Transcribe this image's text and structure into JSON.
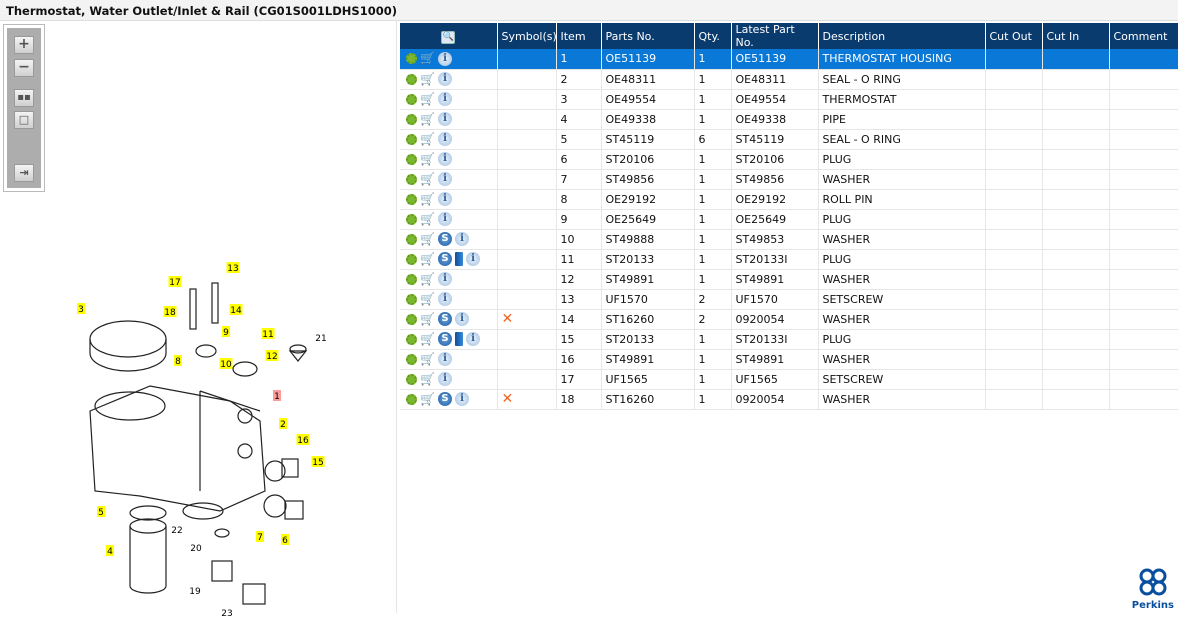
{
  "title": "Thermostat, Water Outlet/Inlet & Rail (CG01S001LDHS1000)",
  "zoom_toolbar": [
    "zoom-in",
    "zoom-out",
    "fit-all",
    "actual-size",
    "toggle-panel"
  ],
  "columns": [
    "",
    "Symbol(s)",
    "Item",
    "Parts No.",
    "Qty.",
    "Latest Part No.",
    "Description",
    "Cut Out",
    "Cut In",
    "Comment"
  ],
  "rows": [
    {
      "icons": [
        "gear",
        "cart",
        "info"
      ],
      "symbol": "",
      "item": "1",
      "part": "OE51139",
      "qty": "1",
      "latest": "OE51139",
      "desc": "THERMOSTAT HOUSING",
      "selected": true
    },
    {
      "icons": [
        "gear",
        "cart",
        "info"
      ],
      "symbol": "",
      "item": "2",
      "part": "OE48311",
      "qty": "1",
      "latest": "OE48311",
      "desc": "SEAL - O RING"
    },
    {
      "icons": [
        "gear",
        "cart",
        "info"
      ],
      "symbol": "",
      "item": "3",
      "part": "OE49554",
      "qty": "1",
      "latest": "OE49554",
      "desc": "THERMOSTAT"
    },
    {
      "icons": [
        "gear",
        "cart",
        "info"
      ],
      "symbol": "",
      "item": "4",
      "part": "OE49338",
      "qty": "1",
      "latest": "OE49338",
      "desc": "PIPE"
    },
    {
      "icons": [
        "gear",
        "cart",
        "info"
      ],
      "symbol": "",
      "item": "5",
      "part": "ST45119",
      "qty": "6",
      "latest": "ST45119",
      "desc": "SEAL - O RING"
    },
    {
      "icons": [
        "gear",
        "cart",
        "info"
      ],
      "symbol": "",
      "item": "6",
      "part": "ST20106",
      "qty": "1",
      "latest": "ST20106",
      "desc": "PLUG"
    },
    {
      "icons": [
        "gear",
        "cart",
        "info"
      ],
      "symbol": "",
      "item": "7",
      "part": "ST49856",
      "qty": "1",
      "latest": "ST49856",
      "desc": "WASHER"
    },
    {
      "icons": [
        "gear",
        "cart",
        "info"
      ],
      "symbol": "",
      "item": "8",
      "part": "OE29192",
      "qty": "1",
      "latest": "OE29192",
      "desc": "ROLL PIN"
    },
    {
      "icons": [
        "gear",
        "cart",
        "info"
      ],
      "symbol": "",
      "item": "9",
      "part": "OE25649",
      "qty": "1",
      "latest": "OE25649",
      "desc": "PLUG"
    },
    {
      "icons": [
        "gear",
        "cart",
        "s",
        "info"
      ],
      "symbol": "",
      "item": "10",
      "part": "ST49888",
      "qty": "1",
      "latest": "ST49853",
      "desc": "WASHER"
    },
    {
      "icons": [
        "gear",
        "cart",
        "s",
        "book",
        "info"
      ],
      "symbol": "",
      "item": "11",
      "part": "ST20133",
      "qty": "1",
      "latest": "ST20133I",
      "desc": "PLUG"
    },
    {
      "icons": [
        "gear",
        "cart",
        "info"
      ],
      "symbol": "",
      "item": "12",
      "part": "ST49891",
      "qty": "1",
      "latest": "ST49891",
      "desc": "WASHER"
    },
    {
      "icons": [
        "gear",
        "cart",
        "info"
      ],
      "symbol": "",
      "item": "13",
      "part": "UF1570",
      "qty": "2",
      "latest": "UF1570",
      "desc": "SETSCREW"
    },
    {
      "icons": [
        "gear",
        "cart",
        "s",
        "info"
      ],
      "symbol": "✕",
      "item": "14",
      "part": "ST16260",
      "qty": "2",
      "latest": "0920054",
      "desc": "WASHER"
    },
    {
      "icons": [
        "gear",
        "cart",
        "s",
        "book",
        "info"
      ],
      "symbol": "",
      "item": "15",
      "part": "ST20133",
      "qty": "1",
      "latest": "ST20133I",
      "desc": "PLUG"
    },
    {
      "icons": [
        "gear",
        "cart",
        "info"
      ],
      "symbol": "",
      "item": "16",
      "part": "ST49891",
      "qty": "1",
      "latest": "ST49891",
      "desc": "WASHER"
    },
    {
      "icons": [
        "gear",
        "cart",
        "info"
      ],
      "symbol": "",
      "item": "17",
      "part": "UF1565",
      "qty": "1",
      "latest": "UF1565",
      "desc": "SETSCREW"
    },
    {
      "icons": [
        "gear",
        "cart",
        "s",
        "info"
      ],
      "symbol": "✕",
      "item": "18",
      "part": "ST16260",
      "qty": "1",
      "latest": "0920054",
      "desc": "WASHER"
    }
  ],
  "callouts": [
    "17",
    "13",
    "3",
    "18",
    "14",
    "9",
    "11",
    "21",
    "8",
    "10",
    "12",
    "1",
    "2",
    "16",
    "15",
    "5",
    "22",
    "7",
    "6",
    "20",
    "4",
    "19",
    "23"
  ],
  "logo": "Perkins",
  "colors": {
    "header": "#0a3b6f",
    "selected": "#0a78d7",
    "callout": "#ffff00",
    "callout_selected": "#ff9a9a"
  }
}
